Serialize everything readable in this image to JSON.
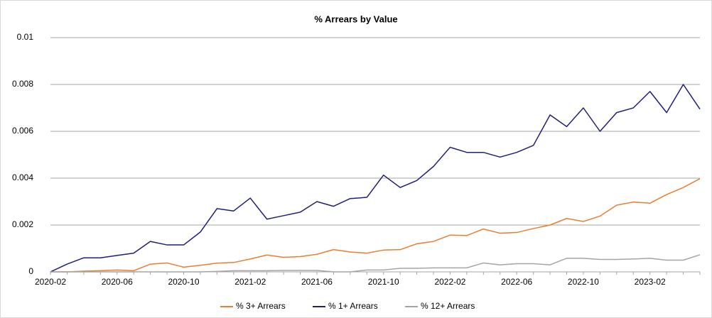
{
  "chart_data": {
    "type": "line",
    "title": "% Arrears by Value",
    "categories": [
      "2020-02",
      null,
      null,
      null,
      "2020-06",
      null,
      null,
      null,
      "2020-10",
      null,
      null,
      null,
      "2021-02",
      null,
      null,
      null,
      "2021-06",
      null,
      null,
      null,
      "2021-10",
      null,
      null,
      null,
      "2022-02",
      null,
      null,
      null,
      "2022-06",
      null,
      null,
      null,
      "2022-10",
      null,
      null,
      null,
      "2023-02",
      null,
      null,
      null
    ],
    "series": [
      {
        "name": "% 3+ Arrears",
        "color": "#ed7d31",
        "values": [
          0,
          0,
          3e-05,
          5e-05,
          8e-05,
          5e-05,
          0.00033,
          0.00038,
          0.0002,
          0.00028,
          0.00037,
          0.0004,
          0.00055,
          0.00072,
          0.00062,
          0.00065,
          0.00075,
          0.00095,
          0.00085,
          0.0008,
          0.00093,
          0.00095,
          0.0012,
          0.0013,
          0.00157,
          0.00155,
          0.00183,
          0.00165,
          0.00168,
          0.00185,
          0.002,
          0.00228,
          0.00215,
          0.00238,
          0.00285,
          0.00298,
          0.00293,
          0.0033,
          0.0036,
          0.00398
        ]
      },
      {
        "name": "% 1+ Arrears",
        "color": "#1f1f7a",
        "values": [
          0,
          0.00033,
          0.0006,
          0.0006,
          0.0007,
          0.0008,
          0.0013,
          0.00115,
          0.00115,
          0.0017,
          0.0027,
          0.0026,
          0.00315,
          0.00225,
          0.0024,
          0.00255,
          0.003,
          0.0028,
          0.00313,
          0.00318,
          0.00413,
          0.0036,
          0.0039,
          0.0045,
          0.00532,
          0.0051,
          0.0051,
          0.0049,
          0.0051,
          0.0054,
          0.0067,
          0.0062,
          0.007,
          0.006,
          0.0068,
          0.007,
          0.0077,
          0.0068,
          0.008,
          0.00695
        ]
      },
      {
        "name": "% 12+ Arrears",
        "color": "#a5a5a5",
        "values": [
          0,
          0,
          0,
          0,
          0,
          0,
          0,
          0,
          0,
          0,
          2e-05,
          5e-05,
          5e-05,
          5e-05,
          6e-05,
          6e-05,
          6e-05,
          0,
          0,
          8e-05,
          8e-05,
          0.00015,
          0.00015,
          0.00017,
          0.00017,
          0.00017,
          0.00038,
          0.0003,
          0.00035,
          0.00035,
          0.0003,
          0.00058,
          0.00058,
          0.00053,
          0.00053,
          0.00055,
          0.00058,
          0.0005,
          0.0005,
          0.00073
        ]
      }
    ],
    "ylim": [
      0,
      0.01
    ],
    "yticks": [
      0,
      0.002,
      0.004,
      0.006,
      0.008,
      0.01
    ],
    "grid": true,
    "legend": "bottom"
  }
}
